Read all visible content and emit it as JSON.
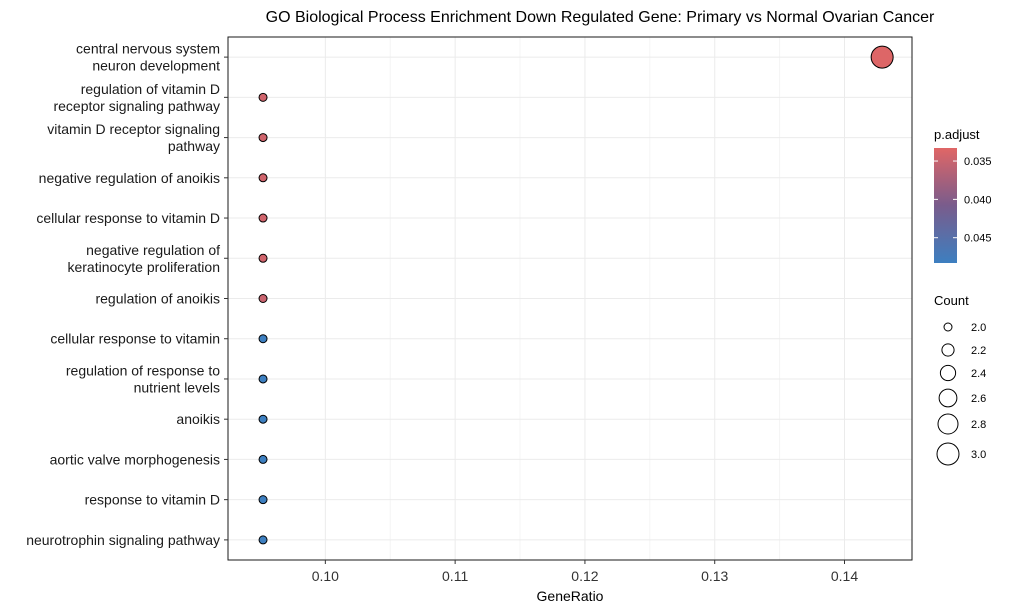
{
  "chart_data": {
    "type": "scatter",
    "title": "GO Biological Process Enrichment Down Regulated Gene: Primary vs Normal Ovarian Cancer",
    "xlabel": "GeneRatio",
    "ylabel": "",
    "xlim": [
      0.0925,
      0.1452
    ],
    "x_ticks": [
      0.1,
      0.11,
      0.12,
      0.13,
      0.14
    ],
    "x_tick_labels": [
      "0.10",
      "0.11",
      "0.12",
      "0.13",
      "0.14"
    ],
    "grid": true,
    "categories": [
      [
        "central nervous system",
        "neuron development"
      ],
      [
        "regulation of vitamin D",
        "receptor signaling pathway"
      ],
      [
        "vitamin D receptor signaling",
        "pathway"
      ],
      [
        "negative regulation of anoikis"
      ],
      [
        "cellular response to vitamin D"
      ],
      [
        "negative regulation of",
        "keratinocyte proliferation"
      ],
      [
        "regulation of anoikis"
      ],
      [
        "cellular response to vitamin"
      ],
      [
        "regulation of response to",
        "nutrient levels"
      ],
      [
        "anoikis"
      ],
      [
        "aortic valve morphogenesis"
      ],
      [
        "response to vitamin D"
      ],
      [
        "neurotrophin signaling pathway"
      ]
    ],
    "points": [
      {
        "x": 0.1429,
        "count": 3,
        "p_adjust": 0.0335
      },
      {
        "x": 0.0952,
        "count": 2,
        "p_adjust": 0.0345
      },
      {
        "x": 0.0952,
        "count": 2,
        "p_adjust": 0.0345
      },
      {
        "x": 0.0952,
        "count": 2,
        "p_adjust": 0.0345
      },
      {
        "x": 0.0952,
        "count": 2,
        "p_adjust": 0.0345
      },
      {
        "x": 0.0952,
        "count": 2,
        "p_adjust": 0.0345
      },
      {
        "x": 0.0952,
        "count": 2,
        "p_adjust": 0.035
      },
      {
        "x": 0.0952,
        "count": 2,
        "p_adjust": 0.0483
      },
      {
        "x": 0.0952,
        "count": 2,
        "p_adjust": 0.0483
      },
      {
        "x": 0.0952,
        "count": 2,
        "p_adjust": 0.0483
      },
      {
        "x": 0.0952,
        "count": 2,
        "p_adjust": 0.0483
      },
      {
        "x": 0.0952,
        "count": 2,
        "p_adjust": 0.0483
      },
      {
        "x": 0.0952,
        "count": 2,
        "p_adjust": 0.0483
      }
    ],
    "color_legend": {
      "title": "p.adjust",
      "range": [
        0.0333,
        0.0483
      ],
      "ticks": [
        0.035,
        0.04,
        0.045
      ],
      "tick_labels": [
        "0.035",
        "0.040",
        "0.045"
      ],
      "low_color": "#e06666",
      "high_color": "#3d7fc0"
    },
    "size_legend": {
      "title": "Count",
      "values": [
        2.0,
        2.2,
        2.4,
        2.6,
        2.8,
        3.0
      ],
      "labels": [
        "2.0",
        "2.2",
        "2.4",
        "2.6",
        "2.8",
        "3.0"
      ]
    },
    "legend_position": "right"
  }
}
